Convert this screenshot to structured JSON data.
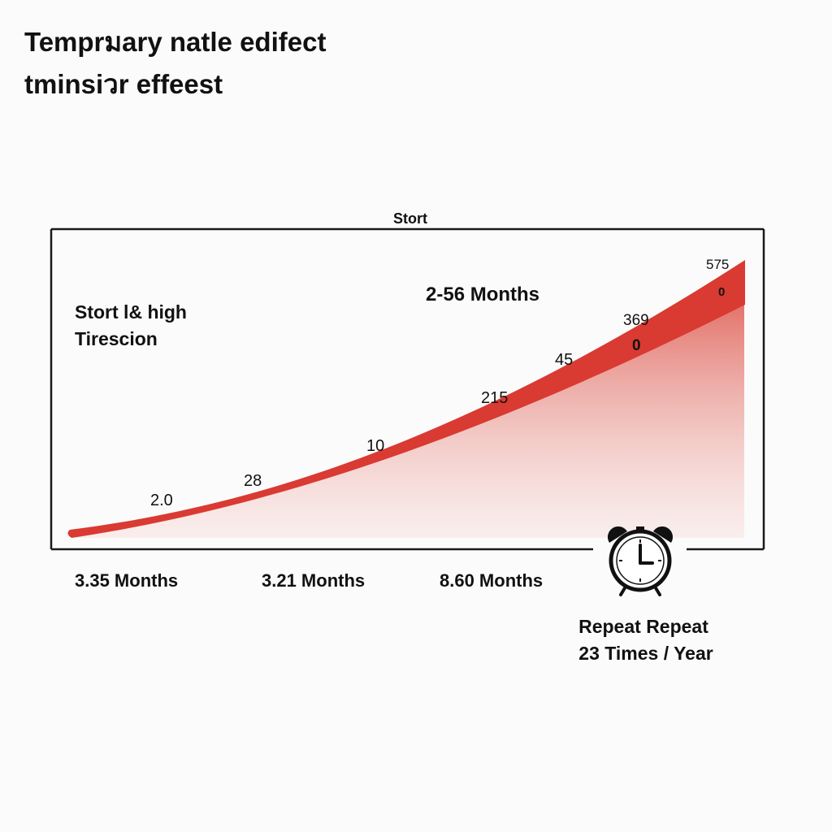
{
  "title": {
    "line1": "Temprมary natle edifect",
    "line2": "tminsiวr effeest"
  },
  "colors": {
    "curve": "#d93a32",
    "fill": "#e0544a",
    "frame": "#1a1a1a",
    "text": "#111111"
  },
  "chart_data": {
    "type": "area",
    "top_label": "Stort",
    "left_note": [
      "Stort l& high",
      "Tirescion"
    ],
    "center_note": "2-56 Months",
    "x_labels": [
      "3.35 Months",
      "3.21 Months",
      "8.60 Months"
    ],
    "points": [
      {
        "x": 0.0,
        "y": 0,
        "label": ""
      },
      {
        "x": 0.15,
        "y": 2,
        "label": "2.0"
      },
      {
        "x": 0.3,
        "y": 28,
        "label": "28"
      },
      {
        "x": 0.45,
        "y": 10,
        "label": "10"
      },
      {
        "x": 0.6,
        "y": 215,
        "label": "215"
      },
      {
        "x": 0.72,
        "y": 45,
        "label": "45"
      },
      {
        "x": 0.83,
        "y": 369,
        "label": "369"
      },
      {
        "x": 0.84,
        "y": 0,
        "label": "0"
      },
      {
        "x": 0.96,
        "y": 575,
        "label": "575"
      },
      {
        "x": 0.97,
        "y": 0,
        "label": "0"
      }
    ]
  },
  "repeat": {
    "icon": "alarm-clock-icon",
    "line1": "Repeat Repeat",
    "line2": "23 Times / Year"
  }
}
